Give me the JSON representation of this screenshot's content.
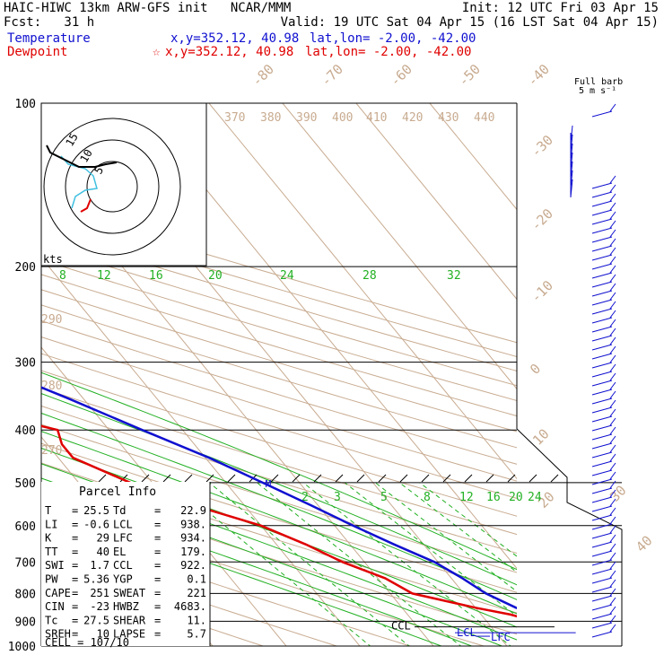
{
  "header": {
    "title": "HAIC-HIWC 13km ARW-GFS init   NCAR/MMM",
    "init": "Init: 12 UTC Fri 03 Apr 15",
    "fcst": "Fcst:   31 h",
    "valid": "Valid: 19 UTC Sat 04 Apr 15 (16 LST Sat 04 Apr 15)",
    "temp_label": "Temperature",
    "temp_xy": "x,y=352.12, 40.98",
    "temp_latlon": "lat,lon= -2.00, -42.00",
    "dew_label": "Dewpoint",
    "dew_marker": "☆",
    "dew_xy": "x,y=352.12, 40.98",
    "dew_latlon": "lat,lon= -2.00, -42.00"
  },
  "barb_header": {
    "line1": "Full barb",
    "line2": "5 m s⁻¹"
  },
  "hodograph": {
    "units": "kts",
    "ring_labels": [
      "5",
      "10",
      "15"
    ]
  },
  "parcel": {
    "title": "Parcel Info",
    "rows": [
      {
        "l1": "T",
        "v1": "25.5",
        "l2": "Td",
        "v2": "22.9"
      },
      {
        "l1": "LI",
        "v1": "-0.6",
        "l2": "LCL",
        "v2": "938."
      },
      {
        "l1": "K",
        "v1": "29",
        "l2": "LFC",
        "v2": "934."
      },
      {
        "l1": "TT",
        "v1": "40",
        "l2": "EL",
        "v2": "179."
      },
      {
        "l1": "SWI",
        "v1": "1.7",
        "l2": "CCL",
        "v2": "922."
      },
      {
        "l1": "PW",
        "v1": "5.36",
        "l2": "YGP",
        "v2": "0.1"
      },
      {
        "l1": "CAPE",
        "v1": "251",
        "l2": "SWEAT",
        "v2": "221"
      },
      {
        "l1": "CIN",
        "v1": "-23",
        "l2": "HWBZ",
        "v2": "4683."
      },
      {
        "l1": "Tc",
        "v1": "27.5",
        "l2": "SHEAR",
        "v2": "11."
      },
      {
        "l1": "SREH",
        "v1": "10",
        "l2": "LAPSE",
        "v2": "5.7"
      }
    ],
    "cell": "CELL = 107/10"
  },
  "chart_data": {
    "type": "line",
    "subtype": "skew-T log-p",
    "y_axis": {
      "label": "",
      "ticks": [
        100,
        200,
        300,
        400,
        500,
        600,
        700,
        800,
        900,
        1000
      ],
      "scale": "log",
      "reversed": true
    },
    "isotherm_labels": [
      "-80",
      "-70",
      "-60",
      "-50",
      "-40",
      "-30",
      "-20",
      "-10",
      "0",
      "10",
      "20",
      "30",
      "40"
    ],
    "theta_labels": [
      "370",
      "380",
      "390",
      "400",
      "410",
      "420",
      "430",
      "440",
      "290",
      "280",
      "270"
    ],
    "thetae_labels": [
      "8",
      "12",
      "16",
      "20",
      "24",
      "28",
      "32"
    ],
    "mixing_ratio_labels": [
      "2",
      "3",
      "5",
      "8",
      "12",
      "16",
      "20",
      "24"
    ],
    "level_markers": [
      {
        "label": "EL",
        "p": 179
      },
      {
        "label": "CCL",
        "p": 922
      },
      {
        "label": "LCL",
        "p": 938
      },
      {
        "label": "LFC",
        "p": 934
      },
      {
        "label": "M",
        "p": 500
      }
    ],
    "series": [
      {
        "name": "Temperature",
        "color": "#1010d0",
        "points": [
          [
            1000,
            26
          ],
          [
            975,
            23.5
          ],
          [
            950,
            21.5
          ],
          [
            925,
            19.5
          ],
          [
            900,
            18
          ],
          [
            875,
            17
          ],
          [
            850,
            15.5
          ],
          [
            800,
            13
          ],
          [
            750,
            11.5
          ],
          [
            700,
            9.5
          ],
          [
            650,
            6
          ],
          [
            600,
            2.5
          ],
          [
            550,
            -1
          ],
          [
            500,
            -5
          ],
          [
            450,
            -9.5
          ],
          [
            400,
            -15.5
          ],
          [
            350,
            -22
          ],
          [
            300,
            -30
          ],
          [
            250,
            -40
          ],
          [
            200,
            -52
          ],
          [
            175,
            -60
          ],
          [
            150,
            -68
          ],
          [
            125,
            -75
          ],
          [
            100,
            -82
          ]
        ]
      },
      {
        "name": "Dewpoint",
        "color": "#e00000",
        "points": [
          [
            1000,
            22
          ],
          [
            975,
            21
          ],
          [
            950,
            20
          ],
          [
            925,
            18.5
          ],
          [
            900,
            16.5
          ],
          [
            875,
            14
          ],
          [
            850,
            10
          ],
          [
            800,
            3
          ],
          [
            750,
            1
          ],
          [
            700,
            -3
          ],
          [
            650,
            -6
          ],
          [
            600,
            -10
          ],
          [
            550,
            -17
          ],
          [
            500,
            -23
          ],
          [
            450,
            -28
          ],
          [
            425,
            -28
          ],
          [
            400,
            -27
          ],
          [
            375,
            -34
          ],
          [
            350,
            -45
          ],
          [
            325,
            -50
          ],
          [
            300,
            -53
          ],
          [
            275,
            -58
          ],
          [
            250,
            -70
          ],
          [
            225,
            -76
          ],
          [
            200,
            -85
          ],
          [
            175,
            -93
          ],
          [
            150,
            -95
          ],
          [
            125,
            -96
          ],
          [
            110,
            -97
          ],
          [
            100,
            -98
          ]
        ]
      }
    ],
    "hodograph_series": [
      {
        "name": "lower",
        "color": "#e00000"
      },
      {
        "name": "middle",
        "color": "#40c0e0"
      },
      {
        "name": "upper",
        "color": "#000000"
      }
    ],
    "grid": true
  },
  "colors": {
    "isotherm": "#c8ab90",
    "mixing": "#22b022",
    "theta": "#c8ab90",
    "barb": "#1010d0",
    "text": "#000000"
  }
}
